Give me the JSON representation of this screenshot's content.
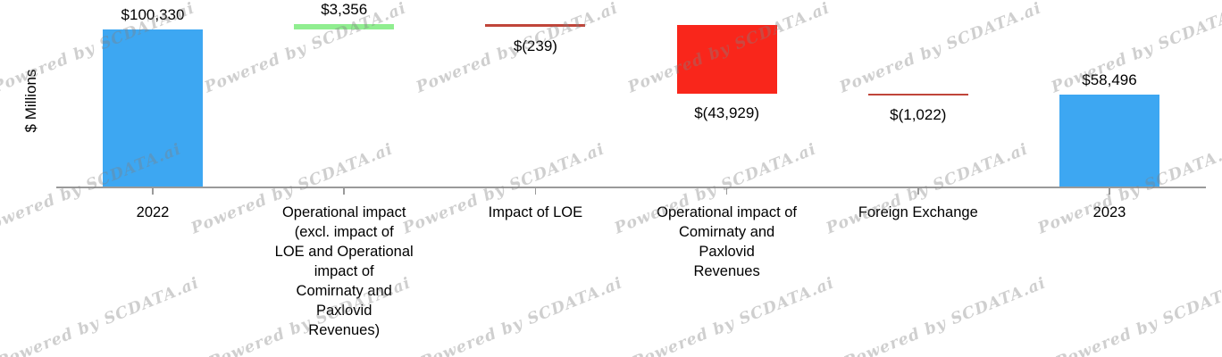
{
  "watermark": {
    "text": "Powered by SCDATA.ai",
    "color_rgba": "rgba(130,130,130,0.38)"
  },
  "chart_data": {
    "type": "bar",
    "subtype": "waterfall",
    "title": "",
    "ylabel": "$ Millions",
    "xlabel": "",
    "grid": "off",
    "legend": "none",
    "axis_color": "#9a9a9a",
    "categories": [
      "2022",
      "Operational impact (excl. impact of LOE and Operational impact of Comirnaty and Paxlovid Revenues)",
      "Impact of LOE",
      "Operational impact of Comirnaty and Paxlovid Revenues",
      "Foreign Exchange",
      "2023"
    ],
    "values": [
      100330,
      3356,
      -239,
      -43929,
      -1022,
      58496
    ],
    "bars": [
      {
        "category_lines": [
          "2022"
        ],
        "value": 100330,
        "display": "$100,330",
        "kind": "total",
        "value_label_position": "above"
      },
      {
        "category_lines": [
          "Operational impact",
          "(excl. impact of",
          "LOE and Operational",
          "impact of",
          "Comirnaty and",
          "Paxlovid",
          "Revenues)"
        ],
        "value": 3356,
        "display": "$3,356",
        "kind": "increase",
        "value_label_position": "above"
      },
      {
        "category_lines": [
          "Impact of LOE"
        ],
        "value": -239,
        "display": "$(239)",
        "kind": "decrease",
        "value_label_position": "below"
      },
      {
        "category_lines": [
          "Operational impact of",
          "Comirnaty and",
          "Paxlovid",
          "Revenues"
        ],
        "value": -43929,
        "display": "$(43,929)",
        "kind": "decrease",
        "value_label_position": "below"
      },
      {
        "category_lines": [
          "Foreign Exchange"
        ],
        "value": -1022,
        "display": "$(1,022)",
        "kind": "decrease",
        "value_label_position": "below"
      },
      {
        "category_lines": [
          "2023"
        ],
        "value": 58496,
        "display": "$58,496",
        "kind": "total",
        "value_label_position": "above"
      }
    ],
    "colors": {
      "total": "#3da7f2",
      "increase": "#90ee90",
      "decrease": "#f9261b",
      "decrease_thin": "#c0453a"
    }
  }
}
